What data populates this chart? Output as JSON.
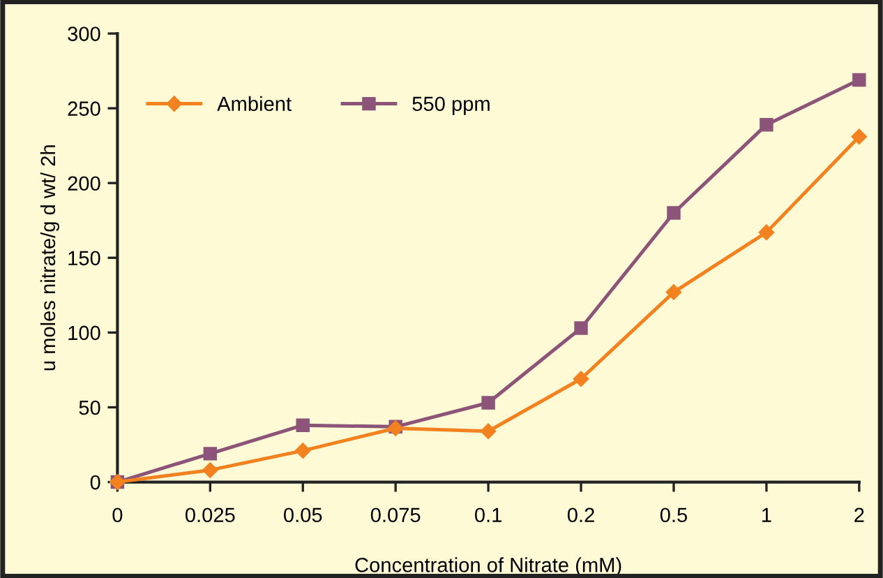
{
  "chart_data": {
    "type": "line",
    "xlabel": "Concentration of Nitrate (mM)",
    "ylabel": "u moles nitrate/g d wt/ 2h",
    "categories": [
      "0",
      "0.025",
      "0.05",
      "0.075",
      "0.1",
      "0.2",
      "0.5",
      "1",
      "2"
    ],
    "series": [
      {
        "name": "Ambient",
        "color": "#f28220",
        "marker": "diamond",
        "values": [
          0,
          8,
          21,
          36,
          34,
          69,
          127,
          167,
          231
        ]
      },
      {
        "name": "550 ppm",
        "color": "#8c5478",
        "marker": "square",
        "values": [
          0,
          19,
          38,
          37,
          53,
          103,
          180,
          239,
          269
        ]
      }
    ],
    "ylim": [
      0,
      300
    ],
    "yticks": [
      0,
      50,
      100,
      150,
      200,
      250,
      300
    ],
    "grid": false,
    "legend": "top left",
    "line_style": "solid"
  }
}
